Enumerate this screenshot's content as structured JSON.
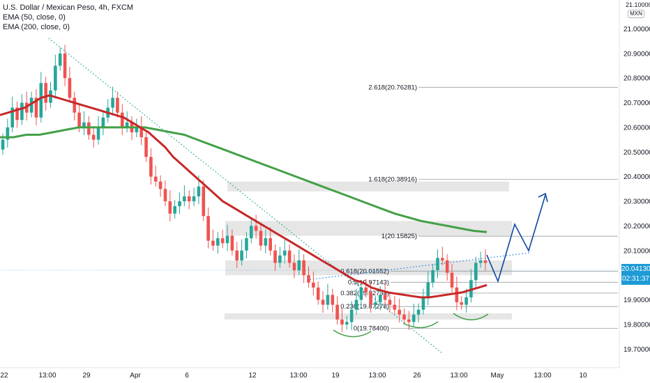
{
  "legend": {
    "title": "U.S. Dollar / Mexican Peso, 4h, FXCM",
    "ema50": "EMA (50, close, 0)",
    "ema200": "EMA (200, close, 0)"
  },
  "currency": {
    "top_price": "21.10000",
    "code": "MXN"
  },
  "price_tag": {
    "price": "20.04130",
    "countdown": "02:31:37"
  },
  "colors": {
    "up": "#26a69a",
    "down": "#ef5350",
    "ema50": "#c62828",
    "ema200": "#43a047",
    "trend": "#26a69a",
    "projection": "#0d47a1",
    "zone": "#e6e6e6",
    "smile": "#43a047",
    "tag": "#1e9bd6"
  },
  "chart_data": {
    "type": "candlestick",
    "title": "U.S. Dollar / Mexican Peso, 4h, FXCM",
    "y_axis": {
      "labels": [
        "21.10000",
        "21.00000",
        "20.90000",
        "20.80000",
        "20.70000",
        "20.60000",
        "20.50000",
        "20.40000",
        "20.30000",
        "20.20000",
        "20.10000",
        "20.00000",
        "19.90000",
        "19.80000",
        "19.70000"
      ],
      "range": [
        19.68,
        21.11
      ]
    },
    "x_axis": {
      "labels": [
        "22",
        "13:00",
        "29",
        "Apr",
        "6",
        "12",
        "13:00",
        "19",
        "13:00",
        "26",
        "13:00",
        "May",
        "13:00",
        "10"
      ]
    },
    "closes": [
      20.55,
      20.6,
      20.68,
      20.63,
      20.7,
      20.66,
      20.72,
      20.64,
      20.78,
      20.7,
      20.75,
      20.85,
      20.9,
      20.8,
      20.72,
      20.66,
      20.6,
      20.62,
      20.57,
      20.55,
      20.6,
      20.64,
      20.68,
      20.72,
      20.66,
      20.6,
      20.62,
      20.58,
      20.6,
      20.56,
      20.48,
      20.4,
      20.38,
      20.35,
      20.3,
      20.25,
      20.28,
      20.3,
      20.32,
      20.3,
      20.32,
      20.36,
      20.24,
      20.14,
      20.12,
      20.15,
      20.13,
      20.16,
      20.1,
      20.06,
      20.1,
      20.15,
      20.2,
      20.18,
      20.12,
      20.15,
      20.1,
      20.05,
      20.08,
      20.1,
      20.05,
      20.02,
      20.06,
      20.0,
      19.97,
      19.95,
      19.9,
      19.88,
      19.92,
      19.88,
      19.82,
      19.8,
      19.81,
      19.86,
      19.9,
      19.95,
      19.93,
      19.88,
      19.89,
      19.92,
      19.9,
      19.88,
      19.86,
      19.84,
      19.82,
      19.81,
      19.84,
      19.86,
      19.91,
      19.97,
      20.02,
      20.07,
      20.06,
      20.01,
      19.95,
      19.89,
      19.88,
      19.91,
      19.98,
      20.05,
      20.06,
      20.05
    ],
    "ema50": [
      20.65,
      20.66,
      20.67,
      20.68,
      20.7,
      20.72,
      20.73,
      20.72,
      20.71,
      20.7,
      20.69,
      20.68,
      20.67,
      20.66,
      20.65,
      20.64,
      20.62,
      20.6,
      20.58,
      20.55,
      20.52,
      20.48,
      20.45,
      20.42,
      20.39,
      20.36,
      20.33,
      20.3,
      20.28,
      20.26,
      20.24,
      20.22,
      20.2,
      20.18,
      20.16,
      20.14,
      20.12,
      20.1,
      20.08,
      20.06,
      20.04,
      20.02,
      20.0,
      19.98,
      19.97,
      19.95,
      19.94,
      19.93,
      19.925,
      19.92,
      19.915,
      19.91,
      19.91,
      19.915,
      19.92,
      19.925,
      19.93,
      19.94,
      19.95,
      19.96
    ],
    "ema200": [
      20.56,
      20.56,
      20.57,
      20.57,
      20.58,
      20.59,
      20.6,
      20.6,
      20.6,
      20.6,
      20.6,
      20.6,
      20.59,
      20.58,
      20.57,
      20.55,
      20.53,
      20.51,
      20.49,
      20.47,
      20.45,
      20.43,
      20.41,
      20.39,
      20.37,
      20.35,
      20.33,
      20.31,
      20.29,
      20.27,
      20.25,
      20.235,
      20.22,
      20.21,
      20.2,
      20.19,
      20.18,
      20.175
    ],
    "fibonacci": [
      {
        "label": "2.618(20.76281)",
        "value": 20.76281
      },
      {
        "label": "1.618(20.38916)",
        "value": 20.38916
      },
      {
        "label": "1(20.15825)",
        "value": 20.15825
      },
      {
        "label": "0.618(20.01552)",
        "value": 20.01552
      },
      {
        "label": "0.5(19.97143)",
        "value": 19.97143
      },
      {
        "label": "0.382(19.92734)",
        "value": 19.92734
      },
      {
        "label": "0.236(19.87278)",
        "value": 19.87278
      },
      {
        "label": "0(19.78400)",
        "value": 19.784
      }
    ],
    "zones": [
      {
        "low": 20.34,
        "high": 20.38
      },
      {
        "low": 20.16,
        "high": 20.22
      },
      {
        "low": 20.0,
        "high": 20.06
      },
      {
        "low": 19.82,
        "high": 19.845
      }
    ],
    "current_price": 20.0413
  }
}
